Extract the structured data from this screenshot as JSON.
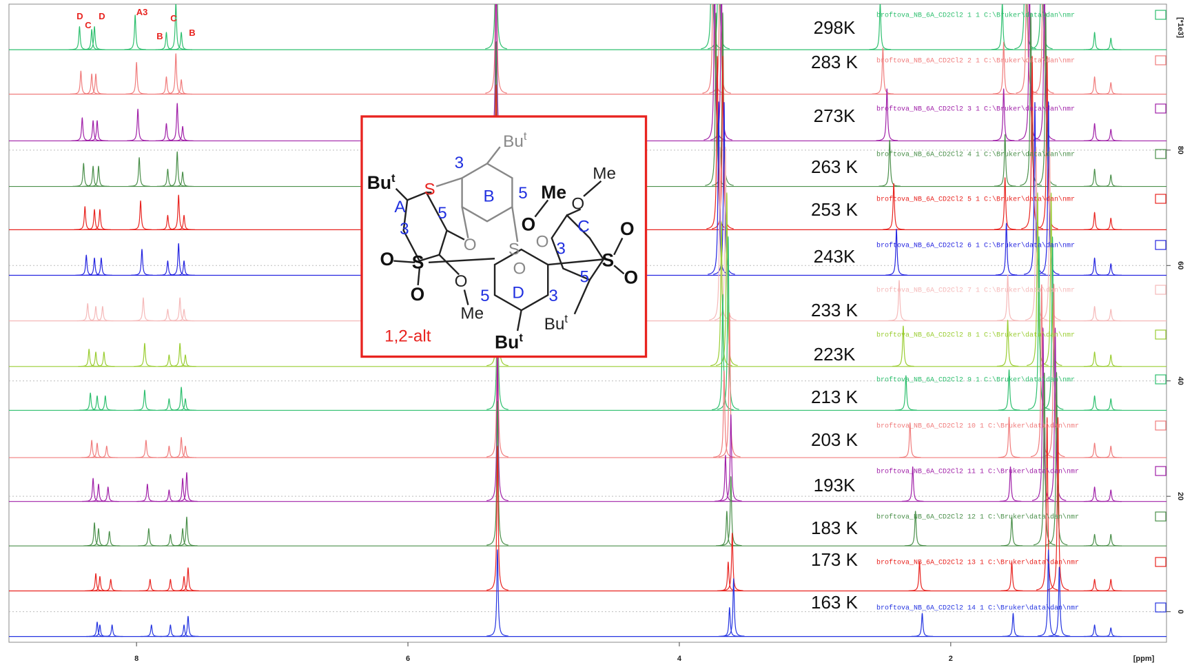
{
  "chart_data": {
    "type": "spectrum",
    "xlim": [
      8.94,
      0.41
    ],
    "xticks": [
      8,
      6,
      4,
      2
    ],
    "x_label": "[ppm]",
    "ylim": [
      -5.3,
      105.3
    ],
    "yticks": [
      0,
      20,
      40,
      60,
      80
    ],
    "y_label": "[*1e3]",
    "grid": true,
    "annotations": [
      "D",
      "C",
      "D",
      "A3",
      "B",
      "C",
      "B"
    ],
    "series": [
      {
        "name": "298K",
        "dataset": "broftova_NB_6A_CD2Cl2 1 1 C:\\Bruker\\data\\dan\\nmr",
        "color": "#2dbf6e",
        "baseline": 97.4,
        "x": [
          8.42,
          8.33,
          8.31,
          8.01,
          7.78,
          7.71,
          7.67,
          5.35,
          3.76,
          3.71,
          2.52,
          1.62,
          1.45,
          1.33,
          0.94,
          0.82
        ],
        "values": [
          4,
          3.5,
          4,
          6,
          3,
          8,
          3,
          30,
          30,
          30,
          8,
          8,
          30,
          30,
          3,
          2
        ]
      },
      {
        "name": "283 K",
        "dataset": "broftova_NB_6A_CD2Cl2 2 1 C:\\Bruker\\data\\dan\\nmr",
        "color": "#f07c7c",
        "baseline": 89.7,
        "x": [
          8.41,
          8.33,
          8.3,
          8.0,
          7.78,
          7.71,
          7.67,
          5.35,
          3.75,
          3.7,
          2.5,
          1.61,
          1.44,
          1.32,
          0.94,
          0.82
        ],
        "values": [
          4,
          3.5,
          3.5,
          5.5,
          3,
          7,
          2.5,
          30,
          30,
          30,
          8,
          9,
          30,
          30,
          3,
          2
        ]
      },
      {
        "name": "273K",
        "dataset": "broftova_NB_6A_CD2Cl2 3 1 C:\\Bruker\\data\\dan\\nmr",
        "color": "#a020a8",
        "baseline": 81.6,
        "x": [
          8.4,
          8.32,
          8.29,
          7.99,
          7.78,
          7.7,
          7.66,
          5.35,
          3.74,
          3.69,
          2.47,
          1.61,
          1.42,
          1.31,
          0.94,
          0.82
        ],
        "values": [
          4,
          3.5,
          3.5,
          5.5,
          3,
          6.5,
          2.5,
          30,
          30,
          30,
          9,
          9,
          30,
          30,
          3,
          2
        ]
      },
      {
        "name": "263 K",
        "dataset": "broftova_NB_6A_CD2Cl2 4 1 C:\\Bruker\\data\\dan\\nmr",
        "color": "#4a8f4a",
        "baseline": 73.7,
        "x": [
          8.39,
          8.32,
          8.28,
          7.98,
          7.77,
          7.7,
          7.66,
          5.35,
          3.73,
          3.68,
          2.45,
          1.6,
          1.41,
          1.3,
          0.94,
          0.82
        ],
        "values": [
          4,
          3.5,
          3.5,
          5,
          3,
          6,
          2.5,
          25,
          30,
          30,
          8,
          9,
          30,
          30,
          3,
          2
        ]
      },
      {
        "name": "253 K",
        "dataset": "broftova_NB_6A_CD2Cl2 5 1 C:\\Bruker\\data\\dan\\nmr",
        "color": "#e8231f",
        "baseline": 66.2,
        "x": [
          8.38,
          8.31,
          8.27,
          7.97,
          7.77,
          7.69,
          7.65,
          5.35,
          3.72,
          3.68,
          2.42,
          1.6,
          1.4,
          1.29,
          0.94,
          0.82
        ],
        "values": [
          4,
          3.5,
          3.5,
          5,
          2.5,
          6,
          2.5,
          25,
          30,
          30,
          8,
          9,
          30,
          30,
          3,
          2
        ]
      },
      {
        "name": "243K",
        "dataset": "broftova_NB_6A_CD2Cl2 6 1 C:\\Bruker\\data\\dan\\nmr",
        "color": "#2424e0",
        "baseline": 58.3,
        "x": [
          8.37,
          8.31,
          8.26,
          7.96,
          7.77,
          7.69,
          7.65,
          5.35,
          3.71,
          3.67,
          2.4,
          1.59,
          1.38,
          1.28,
          0.94,
          0.82
        ],
        "values": [
          3.5,
          3,
          3,
          4.5,
          2.5,
          5.5,
          2.5,
          25,
          30,
          30,
          8,
          9,
          30,
          30,
          3,
          2
        ]
      },
      {
        "name": "233 K",
        "dataset": "broftova_NB_6A_CD2Cl2 7 1 C:\\Bruker\\data\\dan\\nmr",
        "color": "#f5b9b9",
        "baseline": 50.4,
        "x": [
          8.36,
          8.3,
          8.25,
          7.95,
          7.77,
          7.68,
          7.65,
          5.34,
          3.7,
          3.66,
          2.38,
          1.58,
          1.37,
          1.27,
          0.94,
          0.82
        ],
        "values": [
          3,
          2.5,
          2.5,
          4,
          2,
          4,
          2,
          25,
          30,
          30,
          7,
          8,
          30,
          30,
          2.5,
          2
        ]
      },
      {
        "name": "223K",
        "dataset": "broftova_NB_6A_CD2Cl2 8 1 C:\\Bruker\\data\\dan\\nmr",
        "color": "#9acd32",
        "baseline": 42.5,
        "x": [
          8.35,
          8.3,
          8.24,
          7.94,
          7.76,
          7.68,
          7.64,
          5.34,
          3.69,
          3.65,
          2.35,
          1.58,
          1.36,
          1.26,
          0.94,
          0.82
        ],
        "values": [
          3,
          2.5,
          2.5,
          4,
          2,
          4,
          2,
          25,
          25,
          30,
          7,
          8,
          30,
          30,
          2.5,
          2
        ]
      },
      {
        "name": "213 K",
        "dataset": "broftova_NB_6A_CD2Cl2 9 1 C:\\Bruker\\data\\dan\\nmr",
        "color": "#2dbf6e",
        "baseline": 34.9,
        "x": [
          8.34,
          8.29,
          8.23,
          7.94,
          7.76,
          7.67,
          7.64,
          5.34,
          3.68,
          3.64,
          2.33,
          1.57,
          1.35,
          1.25,
          0.94,
          0.82
        ],
        "values": [
          3,
          2.5,
          2.5,
          3.5,
          2,
          4,
          2,
          25,
          20,
          30,
          6,
          7,
          30,
          30,
          2.5,
          2
        ]
      },
      {
        "name": "203 K",
        "dataset": "broftova_NB_6A_CD2Cl2 10 1 C:\\Bruker\\data\\dan\\nmr",
        "color": "#f07c7c",
        "baseline": 26.7,
        "x": [
          8.33,
          8.29,
          8.22,
          7.93,
          7.76,
          7.67,
          7.64,
          5.34,
          3.67,
          3.63,
          2.3,
          1.57,
          1.33,
          1.24,
          0.94,
          0.82
        ],
        "values": [
          3,
          2.5,
          2,
          3,
          2,
          3.5,
          2,
          25,
          15,
          25,
          6,
          7,
          30,
          30,
          2.5,
          2
        ]
      },
      {
        "name": "193K",
        "dataset": "broftova_NB_6A_CD2Cl2 11 1 C:\\Bruker\\data\\dan\\nmr",
        "color": "#a020a8",
        "baseline": 19.1,
        "x": [
          8.32,
          8.28,
          8.21,
          7.92,
          7.76,
          7.66,
          7.63,
          5.34,
          3.66,
          3.62,
          2.28,
          1.56,
          1.32,
          1.23,
          0.94,
          0.82
        ],
        "values": [
          4,
          3,
          2.5,
          3,
          2,
          4,
          5,
          25,
          8,
          15,
          6,
          6,
          30,
          30,
          2.5,
          2
        ]
      },
      {
        "name": "183 K",
        "dataset": "broftova_NB_6A_CD2Cl2 12 1 C:\\Bruker\\data\\dan\\nmr",
        "color": "#4a8f4a",
        "baseline": 11.4,
        "x": [
          8.31,
          8.28,
          8.2,
          7.91,
          7.75,
          7.66,
          7.63,
          5.34,
          3.65,
          3.62,
          2.26,
          1.55,
          1.31,
          1.22,
          0.94,
          0.82
        ],
        "values": [
          4,
          3,
          2.5,
          3,
          2,
          3,
          5,
          25,
          6,
          12,
          6,
          5,
          30,
          30,
          2,
          2
        ]
      },
      {
        "name": "173 K",
        "dataset": "broftova_NB_6A_CD2Cl2 13 1 C:\\Bruker\\data\\dan\\nmr",
        "color": "#e8231f",
        "baseline": 3.6,
        "x": [
          8.3,
          8.27,
          8.19,
          7.9,
          7.75,
          7.65,
          7.62,
          5.34,
          3.64,
          3.61,
          2.23,
          1.55,
          1.29,
          1.21,
          0.94,
          0.82
        ],
        "values": [
          3,
          2.5,
          2,
          2,
          2,
          2.5,
          4,
          25,
          5,
          10,
          5,
          5,
          30,
          30,
          2,
          2
        ]
      },
      {
        "name": "163 K",
        "dataset": "broftova_NB_6A_CD2Cl2 14 1 C:\\Bruker\\data\\dan\\nmr",
        "color": "#2434e0",
        "baseline": -4.3,
        "x": [
          8.29,
          8.27,
          8.18,
          7.89,
          7.75,
          7.65,
          7.62,
          5.34,
          3.63,
          3.6,
          2.21,
          1.54,
          1.28,
          1.2,
          0.94,
          0.82
        ],
        "values": [
          2.5,
          2,
          2,
          2,
          2,
          2,
          3.5,
          15,
          5,
          10,
          4,
          4,
          15,
          12,
          2,
          1.5
        ]
      }
    ]
  },
  "structure": {
    "tert_butyl": [
      {
        "text": "Bu",
        "sup": "t"
      },
      {
        "text": "Bu",
        "sup": "t"
      },
      {
        "text": "Bu",
        "sup": "t"
      },
      {
        "text": "Bu",
        "sup": "t"
      }
    ],
    "methyl": [
      "Me",
      "Me",
      "Me"
    ],
    "rings": [
      "A",
      "B",
      "C",
      "D"
    ],
    "positions": [
      "3",
      "5",
      "5",
      "3",
      "3",
      "5",
      "5",
      "3"
    ],
    "sulfur": [
      "S",
      "S",
      "S",
      "S"
    ],
    "oxygen": [
      "O",
      "O",
      "O",
      "O",
      "O",
      "O",
      "O",
      "O",
      "O",
      "O"
    ],
    "label": "1,2-alt"
  }
}
